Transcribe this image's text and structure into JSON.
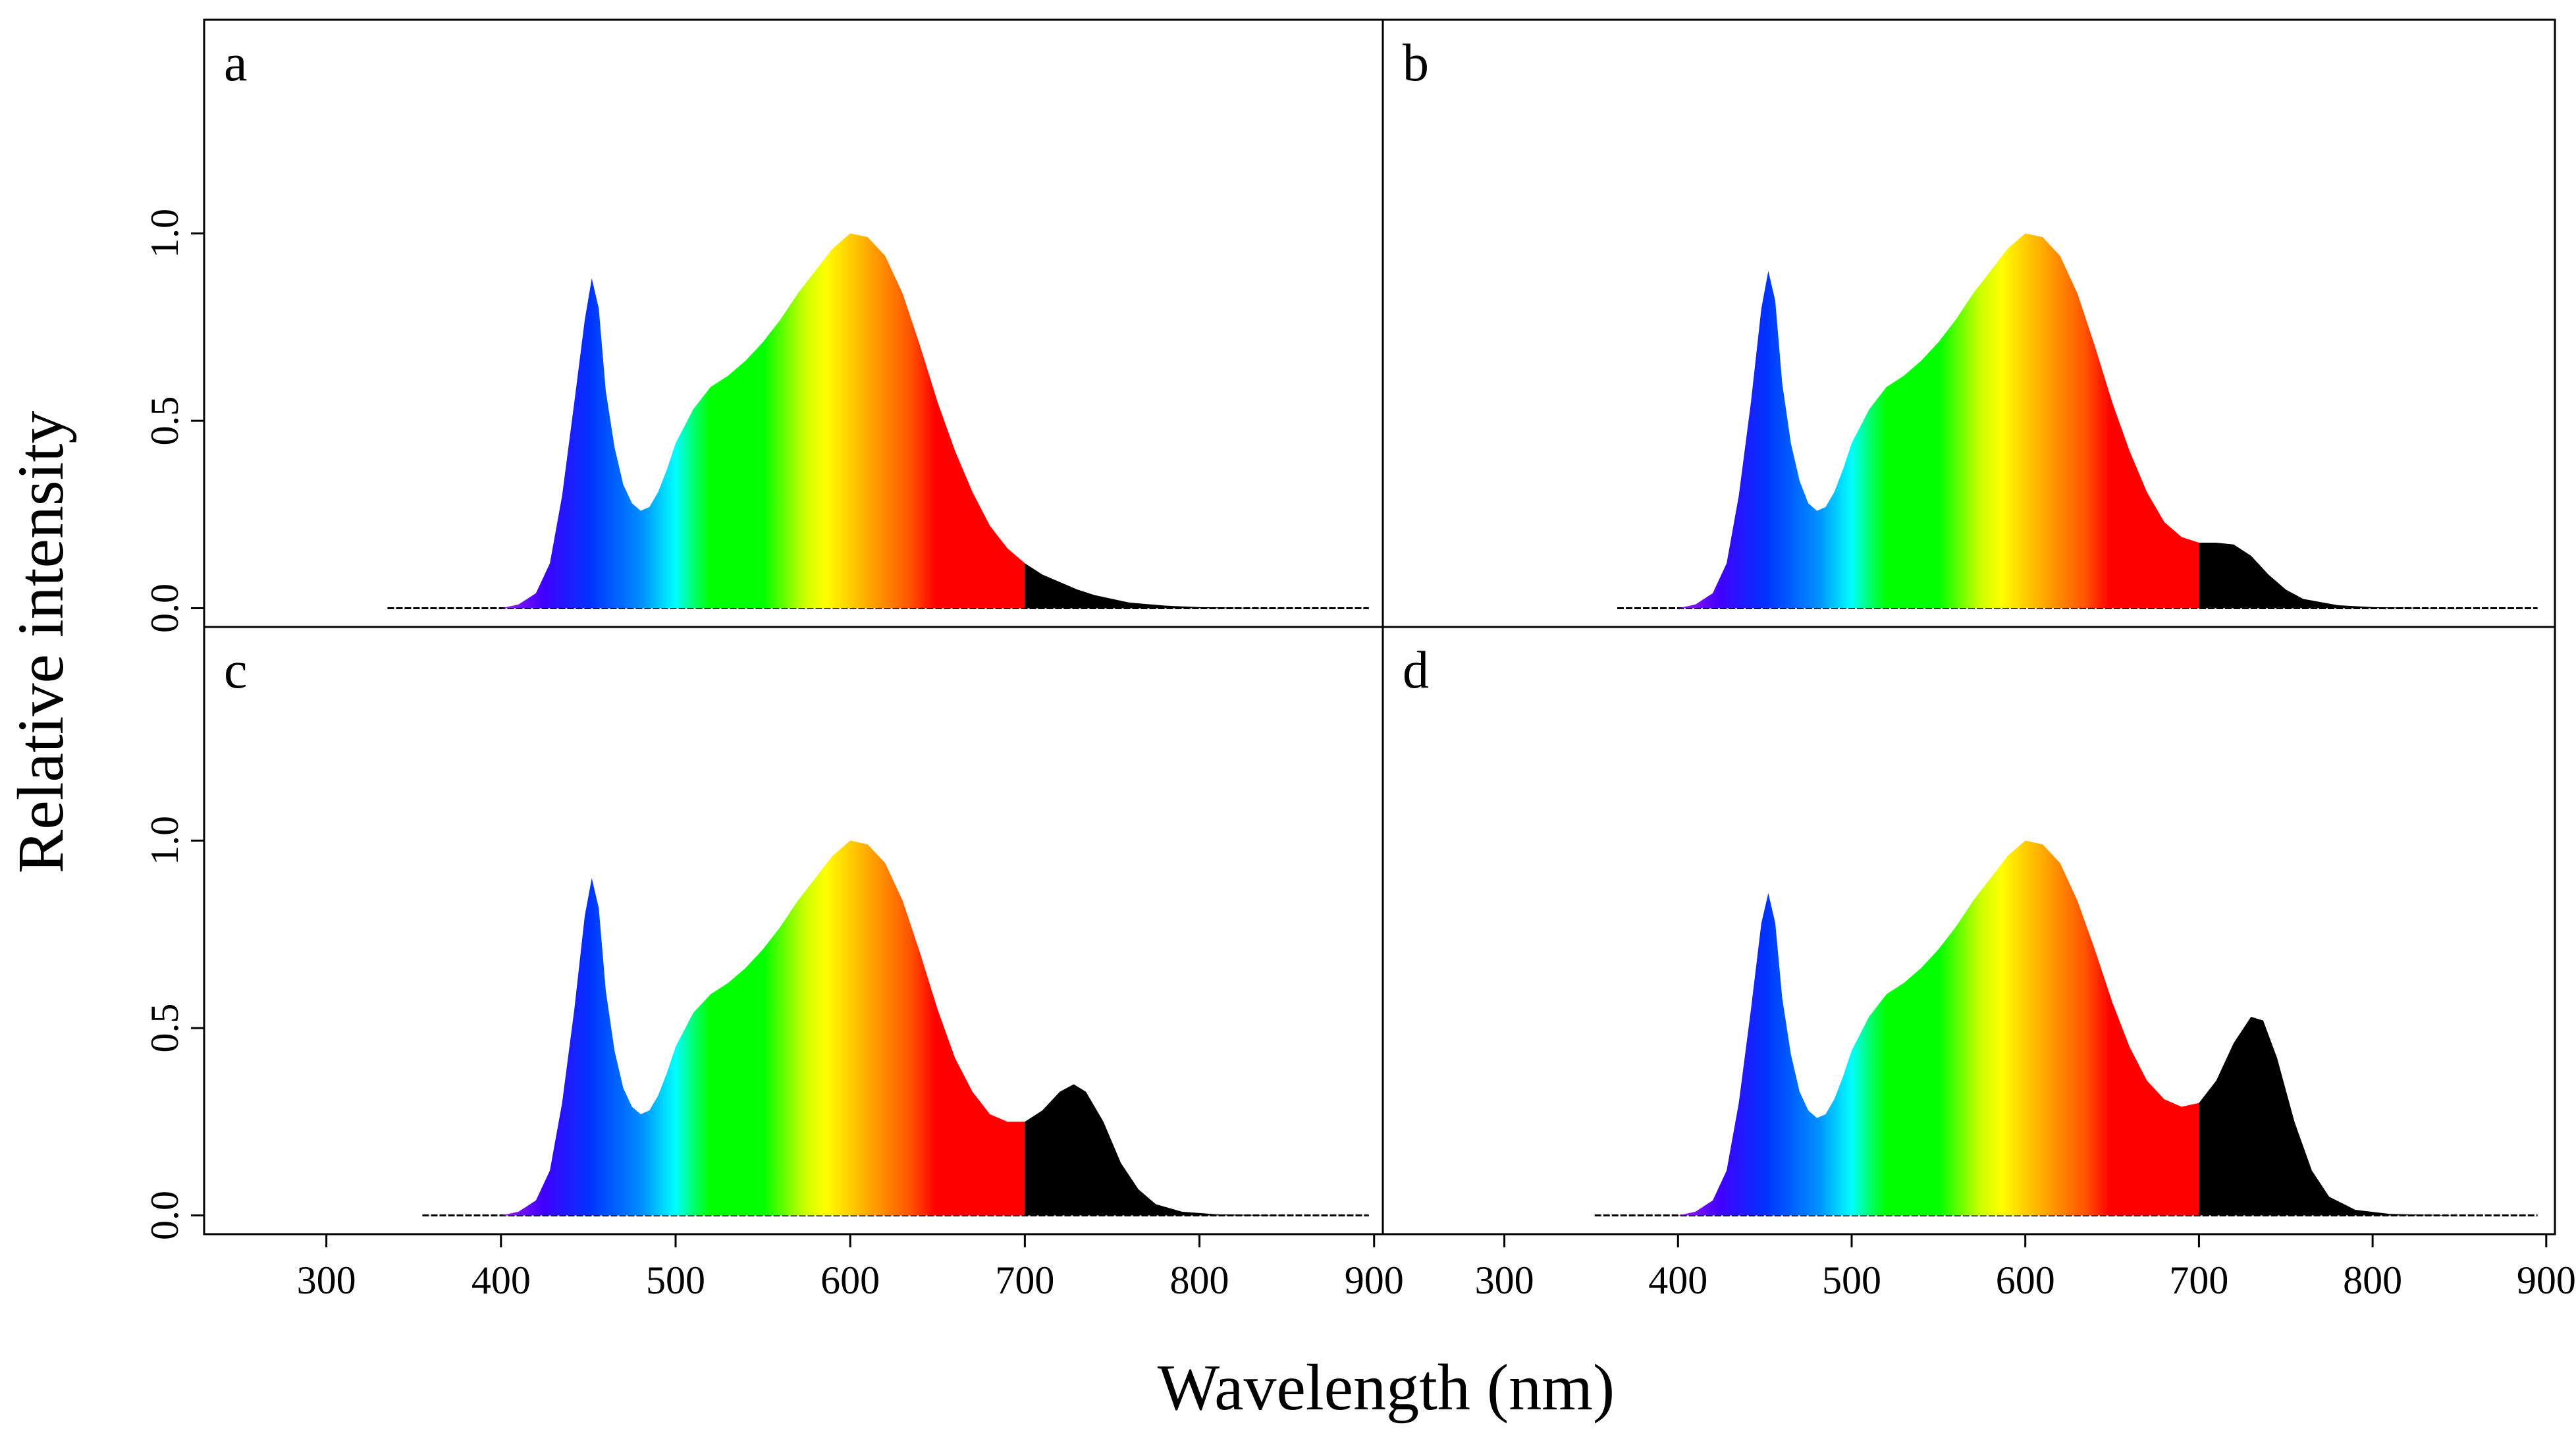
{
  "figure": {
    "xlabel": "Wavelength (nm)",
    "ylabel": "Relative intensity"
  },
  "chart_data": [
    {
      "type": "area",
      "panel_label": "a",
      "xlim": [
        230,
        905
      ],
      "ylim": [
        -0.05,
        1.57
      ],
      "x_ticks": [
        300,
        400,
        500,
        600,
        700,
        800,
        900
      ],
      "y_ticks": [
        0.0,
        0.5,
        1.0
      ],
      "y_tick_labels": [
        "0.0",
        "0.5",
        "1.0"
      ],
      "x_tick_labels": [
        "300",
        "400",
        "500",
        "600",
        "700",
        "800",
        "900"
      ],
      "start_nm": 335,
      "end_nm": 897,
      "points": [
        [
          400,
          0.0
        ],
        [
          410,
          0.01
        ],
        [
          420,
          0.04
        ],
        [
          428,
          0.12
        ],
        [
          435,
          0.3
        ],
        [
          442,
          0.55
        ],
        [
          448,
          0.77
        ],
        [
          452,
          0.88
        ],
        [
          456,
          0.8
        ],
        [
          460,
          0.58
        ],
        [
          465,
          0.43
        ],
        [
          470,
          0.33
        ],
        [
          475,
          0.28
        ],
        [
          480,
          0.26
        ],
        [
          485,
          0.27
        ],
        [
          490,
          0.31
        ],
        [
          495,
          0.37
        ],
        [
          500,
          0.44
        ],
        [
          510,
          0.53
        ],
        [
          520,
          0.59
        ],
        [
          530,
          0.62
        ],
        [
          540,
          0.66
        ],
        [
          550,
          0.71
        ],
        [
          560,
          0.77
        ],
        [
          570,
          0.84
        ],
        [
          580,
          0.9
        ],
        [
          590,
          0.96
        ],
        [
          600,
          1.0
        ],
        [
          610,
          0.99
        ],
        [
          620,
          0.94
        ],
        [
          630,
          0.84
        ],
        [
          640,
          0.7
        ],
        [
          650,
          0.55
        ],
        [
          660,
          0.42
        ],
        [
          670,
          0.31
        ],
        [
          680,
          0.22
        ],
        [
          690,
          0.16
        ],
        [
          700,
          0.12
        ],
        [
          710,
          0.09
        ],
        [
          720,
          0.07
        ],
        [
          730,
          0.05
        ],
        [
          740,
          0.035
        ],
        [
          750,
          0.025
        ],
        [
          760,
          0.015
        ],
        [
          780,
          0.007
        ],
        [
          800,
          0.003
        ],
        [
          830,
          0.001
        ],
        [
          870,
          0.0
        ]
      ]
    },
    {
      "type": "area",
      "panel_label": "b",
      "xlim": [
        230,
        905
      ],
      "ylim": [
        -0.05,
        1.57
      ],
      "x_ticks": [
        300,
        400,
        500,
        600,
        700,
        800,
        900
      ],
      "y_ticks": [
        0.0,
        0.5,
        1.0
      ],
      "y_tick_labels": [
        "0.0",
        "0.5",
        "1.0"
      ],
      "x_tick_labels": [
        "300",
        "400",
        "500",
        "600",
        "700",
        "800",
        "900"
      ],
      "start_nm": 365,
      "end_nm": 895,
      "points": [
        [
          400,
          0.0
        ],
        [
          410,
          0.01
        ],
        [
          420,
          0.04
        ],
        [
          428,
          0.12
        ],
        [
          435,
          0.3
        ],
        [
          442,
          0.55
        ],
        [
          448,
          0.8
        ],
        [
          452,
          0.9
        ],
        [
          456,
          0.82
        ],
        [
          460,
          0.6
        ],
        [
          465,
          0.44
        ],
        [
          470,
          0.34
        ],
        [
          475,
          0.28
        ],
        [
          480,
          0.26
        ],
        [
          485,
          0.27
        ],
        [
          490,
          0.31
        ],
        [
          495,
          0.37
        ],
        [
          500,
          0.44
        ],
        [
          510,
          0.53
        ],
        [
          520,
          0.59
        ],
        [
          530,
          0.62
        ],
        [
          540,
          0.66
        ],
        [
          550,
          0.71
        ],
        [
          560,
          0.77
        ],
        [
          570,
          0.84
        ],
        [
          580,
          0.9
        ],
        [
          590,
          0.96
        ],
        [
          600,
          1.0
        ],
        [
          610,
          0.99
        ],
        [
          620,
          0.94
        ],
        [
          630,
          0.84
        ],
        [
          640,
          0.7
        ],
        [
          650,
          0.55
        ],
        [
          660,
          0.42
        ],
        [
          670,
          0.31
        ],
        [
          680,
          0.23
        ],
        [
          690,
          0.19
        ],
        [
          700,
          0.175
        ],
        [
          710,
          0.175
        ],
        [
          720,
          0.17
        ],
        [
          730,
          0.14
        ],
        [
          740,
          0.09
        ],
        [
          750,
          0.05
        ],
        [
          760,
          0.025
        ],
        [
          780,
          0.008
        ],
        [
          800,
          0.003
        ],
        [
          830,
          0.001
        ],
        [
          870,
          0.0
        ]
      ]
    },
    {
      "type": "area",
      "panel_label": "c",
      "xlim": [
        230,
        905
      ],
      "ylim": [
        -0.05,
        1.57
      ],
      "x_ticks": [
        300,
        400,
        500,
        600,
        700,
        800,
        900
      ],
      "y_ticks": [
        0.0,
        0.5,
        1.0
      ],
      "y_tick_labels": [
        "0.0",
        "0.5",
        "1.0"
      ],
      "x_tick_labels": [
        "300",
        "400",
        "500",
        "600",
        "700",
        "800",
        "900"
      ],
      "start_nm": 355,
      "end_nm": 897,
      "points": [
        [
          400,
          0.0
        ],
        [
          410,
          0.01
        ],
        [
          420,
          0.04
        ],
        [
          428,
          0.12
        ],
        [
          435,
          0.3
        ],
        [
          442,
          0.55
        ],
        [
          448,
          0.8
        ],
        [
          452,
          0.9
        ],
        [
          456,
          0.82
        ],
        [
          460,
          0.6
        ],
        [
          465,
          0.44
        ],
        [
          470,
          0.34
        ],
        [
          475,
          0.29
        ],
        [
          480,
          0.27
        ],
        [
          485,
          0.28
        ],
        [
          490,
          0.32
        ],
        [
          495,
          0.38
        ],
        [
          500,
          0.45
        ],
        [
          510,
          0.54
        ],
        [
          520,
          0.59
        ],
        [
          530,
          0.62
        ],
        [
          540,
          0.66
        ],
        [
          550,
          0.71
        ],
        [
          560,
          0.77
        ],
        [
          570,
          0.84
        ],
        [
          580,
          0.9
        ],
        [
          590,
          0.96
        ],
        [
          600,
          1.0
        ],
        [
          610,
          0.99
        ],
        [
          620,
          0.94
        ],
        [
          630,
          0.84
        ],
        [
          640,
          0.7
        ],
        [
          650,
          0.55
        ],
        [
          660,
          0.42
        ],
        [
          670,
          0.33
        ],
        [
          680,
          0.27
        ],
        [
          690,
          0.25
        ],
        [
          700,
          0.25
        ],
        [
          710,
          0.28
        ],
        [
          720,
          0.33
        ],
        [
          728,
          0.35
        ],
        [
          735,
          0.33
        ],
        [
          745,
          0.25
        ],
        [
          755,
          0.14
        ],
        [
          765,
          0.07
        ],
        [
          775,
          0.03
        ],
        [
          790,
          0.01
        ],
        [
          810,
          0.003
        ],
        [
          850,
          0.0
        ]
      ]
    },
    {
      "type": "area",
      "panel_label": "d",
      "xlim": [
        230,
        905
      ],
      "ylim": [
        -0.05,
        1.57
      ],
      "x_ticks": [
        300,
        400,
        500,
        600,
        700,
        800,
        900
      ],
      "y_ticks": [
        0.0,
        0.5,
        1.0
      ],
      "y_tick_labels": [
        "0.0",
        "0.5",
        "1.0"
      ],
      "x_tick_labels": [
        "300",
        "400",
        "500",
        "600",
        "700",
        "800",
        "900"
      ],
      "start_nm": 352,
      "end_nm": 895,
      "points": [
        [
          400,
          0.0
        ],
        [
          410,
          0.01
        ],
        [
          420,
          0.04
        ],
        [
          428,
          0.12
        ],
        [
          435,
          0.3
        ],
        [
          442,
          0.55
        ],
        [
          448,
          0.78
        ],
        [
          452,
          0.86
        ],
        [
          456,
          0.78
        ],
        [
          460,
          0.58
        ],
        [
          465,
          0.43
        ],
        [
          470,
          0.33
        ],
        [
          475,
          0.28
        ],
        [
          480,
          0.26
        ],
        [
          485,
          0.27
        ],
        [
          490,
          0.31
        ],
        [
          495,
          0.37
        ],
        [
          500,
          0.44
        ],
        [
          510,
          0.53
        ],
        [
          520,
          0.59
        ],
        [
          530,
          0.62
        ],
        [
          540,
          0.66
        ],
        [
          550,
          0.71
        ],
        [
          560,
          0.77
        ],
        [
          570,
          0.84
        ],
        [
          580,
          0.9
        ],
        [
          590,
          0.96
        ],
        [
          600,
          1.0
        ],
        [
          610,
          0.99
        ],
        [
          620,
          0.94
        ],
        [
          630,
          0.84
        ],
        [
          640,
          0.71
        ],
        [
          650,
          0.57
        ],
        [
          660,
          0.45
        ],
        [
          670,
          0.36
        ],
        [
          680,
          0.31
        ],
        [
          690,
          0.29
        ],
        [
          700,
          0.3
        ],
        [
          710,
          0.36
        ],
        [
          720,
          0.46
        ],
        [
          730,
          0.53
        ],
        [
          737,
          0.52
        ],
        [
          745,
          0.42
        ],
        [
          755,
          0.25
        ],
        [
          765,
          0.12
        ],
        [
          775,
          0.05
        ],
        [
          790,
          0.015
        ],
        [
          810,
          0.004
        ],
        [
          850,
          0.0
        ]
      ]
    }
  ]
}
